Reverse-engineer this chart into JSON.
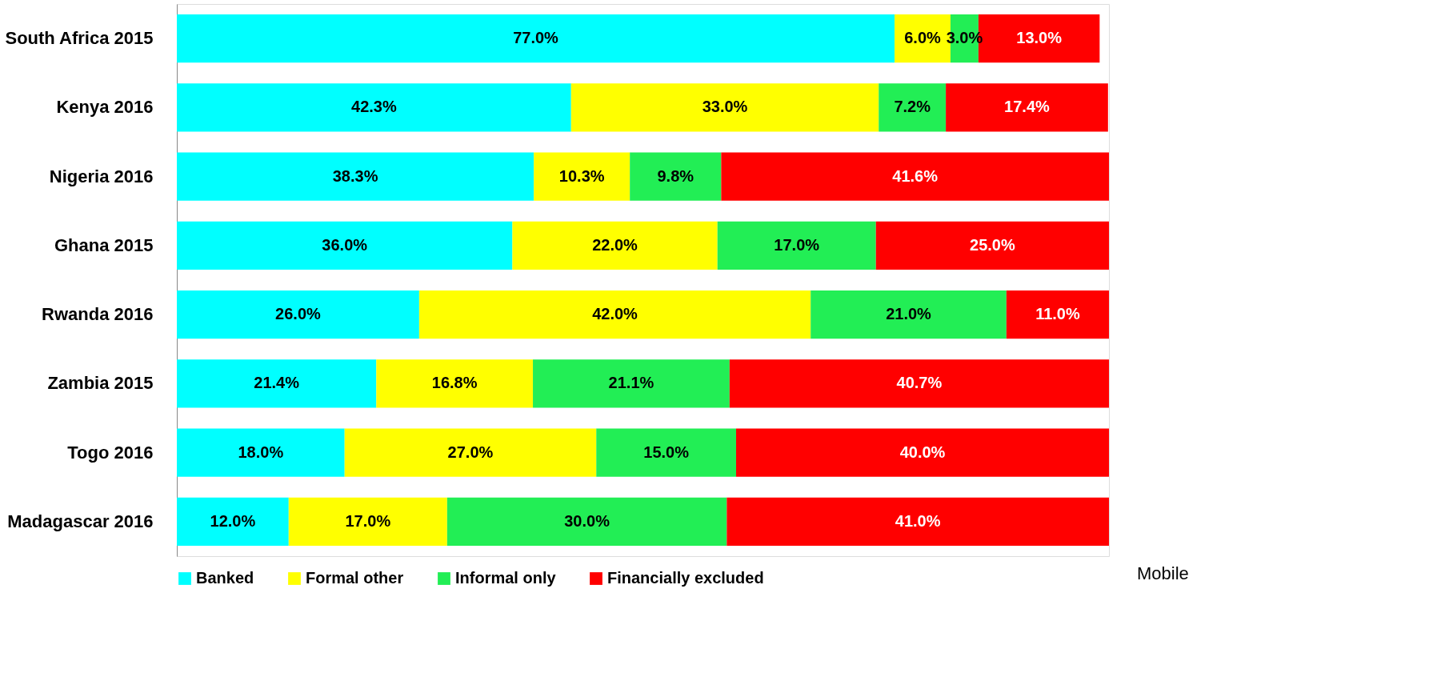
{
  "chart_data": {
    "type": "bar",
    "orientation": "horizontal",
    "stacked": true,
    "legend": "bottom",
    "grid": false,
    "categories": [
      "South Africa 2015",
      "Kenya 2016",
      "Nigeria 2016",
      "Ghana 2015",
      "Rwanda 2016",
      "Zambia 2015",
      "Togo 2016",
      "Madagascar 2016"
    ],
    "series": [
      {
        "name": "Banked",
        "color": "#00ffff",
        "values": [
          77.0,
          42.3,
          38.3,
          36.0,
          26.0,
          21.4,
          18.0,
          12.0
        ],
        "value_labels": [
          "77.0%",
          "42.3%",
          "38.3%",
          "36.0%",
          "26.0%",
          "21.4%",
          "18.0%",
          "12.0%"
        ]
      },
      {
        "name": "Formal other",
        "color": "#ffff00",
        "values": [
          6.0,
          33.0,
          10.3,
          22.0,
          42.0,
          16.8,
          27.0,
          17.0
        ],
        "value_labels": [
          "6.0%",
          "33.0%",
          "10.3%",
          "22.0%",
          "42.0%",
          "16.8%",
          "27.0%",
          "17.0%"
        ]
      },
      {
        "name": "Informal only",
        "color": "#22ee55",
        "values": [
          3.0,
          7.2,
          9.8,
          17.0,
          21.0,
          21.1,
          15.0,
          30.0
        ],
        "value_labels": [
          "3.0%",
          "7.2%",
          "9.8%",
          "17.0%",
          "21.0%",
          "21.1%",
          "15.0%",
          "30.0%"
        ]
      },
      {
        "name": "Financially excluded",
        "color": "#ff0000",
        "values": [
          13.0,
          17.4,
          41.6,
          25.0,
          11.0,
          40.7,
          40.0,
          41.0
        ],
        "value_labels": [
          "13.0%",
          "17.4%",
          "41.6%",
          "25.0%",
          "11.0%",
          "40.7%",
          "40.0%",
          "41.0%"
        ]
      }
    ],
    "annotations": [
      "Mobile"
    ]
  }
}
